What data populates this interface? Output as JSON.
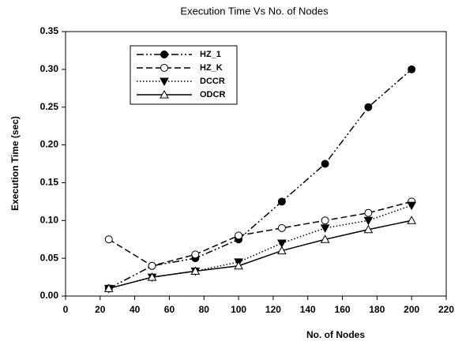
{
  "chart_data": {
    "type": "line",
    "title": "Execution Time Vs No. of Nodes",
    "x_label": "No. of Nodes",
    "y_label": "Execution Time (sec)",
    "x": [
      25,
      50,
      75,
      100,
      125,
      150,
      175,
      200
    ],
    "series": [
      {
        "name": "HZ_1",
        "color": "#000000",
        "marker": "circle-filled",
        "dash": "dash-dot-dot",
        "values": [
          0.01,
          0.04,
          0.05,
          0.075,
          0.125,
          0.175,
          0.25,
          0.3
        ]
      },
      {
        "name": "HZ_K",
        "color": "#000000",
        "marker": "circle-open",
        "dash": "dashed",
        "values": [
          0.075,
          0.04,
          0.055,
          0.08,
          0.09,
          0.1,
          0.11,
          0.125
        ]
      },
      {
        "name": "DCCR",
        "color": "#000000",
        "marker": "triangle-down-filled",
        "dash": "dotted",
        "values": [
          0.01,
          0.025,
          0.033,
          0.045,
          0.07,
          0.09,
          0.1,
          0.12
        ]
      },
      {
        "name": "ODCR",
        "color": "#000000",
        "marker": "triangle-up-open",
        "dash": "solid",
        "values": [
          0.01,
          0.025,
          0.033,
          0.04,
          0.06,
          0.075,
          0.088,
          0.1
        ]
      }
    ],
    "xlim": [
      0,
      220
    ],
    "xticks": [
      0,
      20,
      40,
      60,
      80,
      100,
      120,
      140,
      160,
      180,
      200,
      220
    ],
    "ylim": [
      0,
      0.35
    ],
    "yticks": [
      {
        "value": 0,
        "label": "0.00"
      },
      {
        "value": 0.05,
        "label": "0.05"
      },
      {
        "value": 0.1,
        "label": "0.10"
      },
      {
        "value": 0.15,
        "label": "0.15"
      },
      {
        "value": 0.2,
        "label": "0.20"
      },
      {
        "value": 0.25,
        "label": "0.25"
      },
      {
        "value": 0.3,
        "label": "0.30"
      },
      {
        "value": 0.35,
        "label": "0.35"
      }
    ],
    "legend": "upper left",
    "grid": false
  }
}
